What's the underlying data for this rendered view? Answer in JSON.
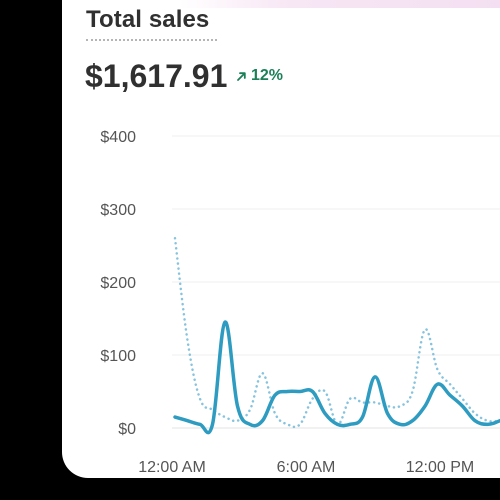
{
  "header": {
    "title": "Total sales",
    "total": "$1,617.91",
    "change": "12%",
    "change_direction": "up",
    "change_color": "#1b7f57",
    "change_icon": "arrow-up-right-icon"
  },
  "chart_data": {
    "type": "line",
    "ylim": [
      0,
      400
    ],
    "y_ticks": [
      "$0",
      "$100",
      "$200",
      "$300",
      "$400"
    ],
    "x_ticks": [
      "12:00 AM",
      "6:00 AM",
      "12:00 PM"
    ],
    "grid": true,
    "x": [
      0,
      0.5,
      1,
      1.5,
      2,
      2.5,
      3,
      3.5,
      4,
      4.5,
      5,
      5.5,
      6,
      6.5,
      7,
      7.5,
      8,
      8.5,
      9,
      9.5,
      10,
      10.5,
      11,
      11.5,
      12,
      12.5,
      13,
      13.5,
      14
    ],
    "series": [
      {
        "style": "solid",
        "color": "#2e9bc1",
        "values": [
          15,
          10,
          5,
          5,
          145,
          30,
          5,
          10,
          45,
          50,
          50,
          50,
          20,
          5,
          5,
          15,
          70,
          20,
          5,
          10,
          30,
          60,
          45,
          30,
          10,
          5,
          10,
          20,
          30
        ]
      },
      {
        "style": "dotted",
        "color": "#86c3de",
        "values": [
          260,
          120,
          40,
          25,
          15,
          10,
          25,
          75,
          20,
          5,
          5,
          40,
          50,
          5,
          40,
          35,
          35,
          30,
          30,
          50,
          135,
          80,
          60,
          40,
          20,
          10,
          10,
          15,
          20
        ]
      }
    ]
  }
}
